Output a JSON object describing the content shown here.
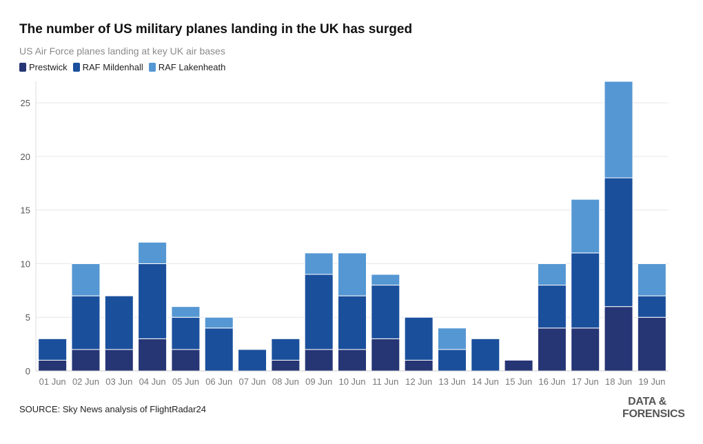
{
  "title": "The number of US military planes landing in the UK has surged",
  "subtitle": "US Air Force planes landing at key UK air bases",
  "source": "SOURCE: Sky News analysis of FlightRadar24",
  "logo": {
    "line1": "DATA &",
    "line2": "FORENSICS"
  },
  "colors": {
    "Prestwick": "#263574",
    "RAF Mildenhall": "#1a4f9c",
    "RAF Lakenheath": "#5597d3",
    "grid": "#e6e6e6",
    "axis_text": "#555555"
  },
  "chart_data": {
    "type": "bar",
    "stacked": true,
    "title": "The number of US military planes landing in the UK has surged",
    "subtitle": "US Air Force planes landing at key UK air bases",
    "xlabel": "",
    "ylabel": "",
    "ylim": [
      0,
      27
    ],
    "yticks": [
      0,
      5,
      10,
      15,
      20,
      25
    ],
    "grid": true,
    "legend": "top-left",
    "categories": [
      "01 Jun",
      "02 Jun",
      "03 Jun",
      "04 Jun",
      "05 Jun",
      "06 Jun",
      "07 Jun",
      "08 Jun",
      "09 Jun",
      "10 Jun",
      "11 Jun",
      "12 Jun",
      "13 Jun",
      "14 Jun",
      "15 Jun",
      "16 Jun",
      "17 Jun",
      "18 Jun",
      "19 Jun"
    ],
    "series": [
      {
        "name": "Prestwick",
        "values": [
          1,
          2,
          2,
          3,
          2,
          0,
          0,
          1,
          2,
          2,
          3,
          1,
          0,
          0,
          1,
          4,
          4,
          6,
          5
        ]
      },
      {
        "name": "RAF Mildenhall",
        "values": [
          2,
          5,
          5,
          7,
          3,
          4,
          2,
          2,
          7,
          5,
          5,
          4,
          2,
          3,
          0,
          4,
          7,
          12,
          2
        ]
      },
      {
        "name": "RAF Lakenheath",
        "values": [
          0,
          3,
          0,
          2,
          1,
          1,
          0,
          0,
          2,
          4,
          1,
          0,
          2,
          0,
          0,
          2,
          5,
          9,
          3
        ]
      }
    ]
  }
}
